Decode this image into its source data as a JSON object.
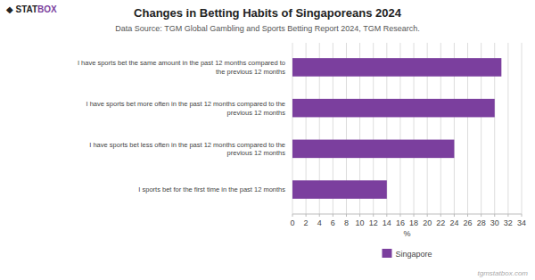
{
  "chart_data": {
    "type": "bar",
    "orientation": "horizontal",
    "title": "Changes in Betting Habits of Singaporeans 2024",
    "subtitle": "Data Source: TGM Global Gambling and Sports Betting Report 2024, TGM Research.",
    "categories": [
      "I sports bet for the first time in the past 12 months",
      "I have sports bet less often in the past 12 months compared to the\nprevious 12 months",
      "I have sports bet more often in the past 12 months compared to the\nprevious 12 months",
      "I have sports bet the same amount in the past 12 months compared to\nthe previous 12 months"
    ],
    "series": [
      {
        "name": "Singapore",
        "color": "#7B3F9E",
        "values": [
          14,
          24,
          30,
          31
        ]
      }
    ],
    "xlabel": "%",
    "xlim": [
      0,
      34
    ],
    "xticks": [
      0,
      2,
      4,
      6,
      8,
      10,
      12,
      14,
      16,
      18,
      20,
      22,
      24,
      26,
      28,
      30,
      32,
      34
    ],
    "grid": true,
    "legend": "bottom",
    "annotations": [
      {
        "text": "◆ STAT",
        "color": "#222222"
      },
      {
        "text": "BOX",
        "color": "#7B3F9E"
      },
      {
        "text": "tgmstatbox.com"
      }
    ]
  }
}
